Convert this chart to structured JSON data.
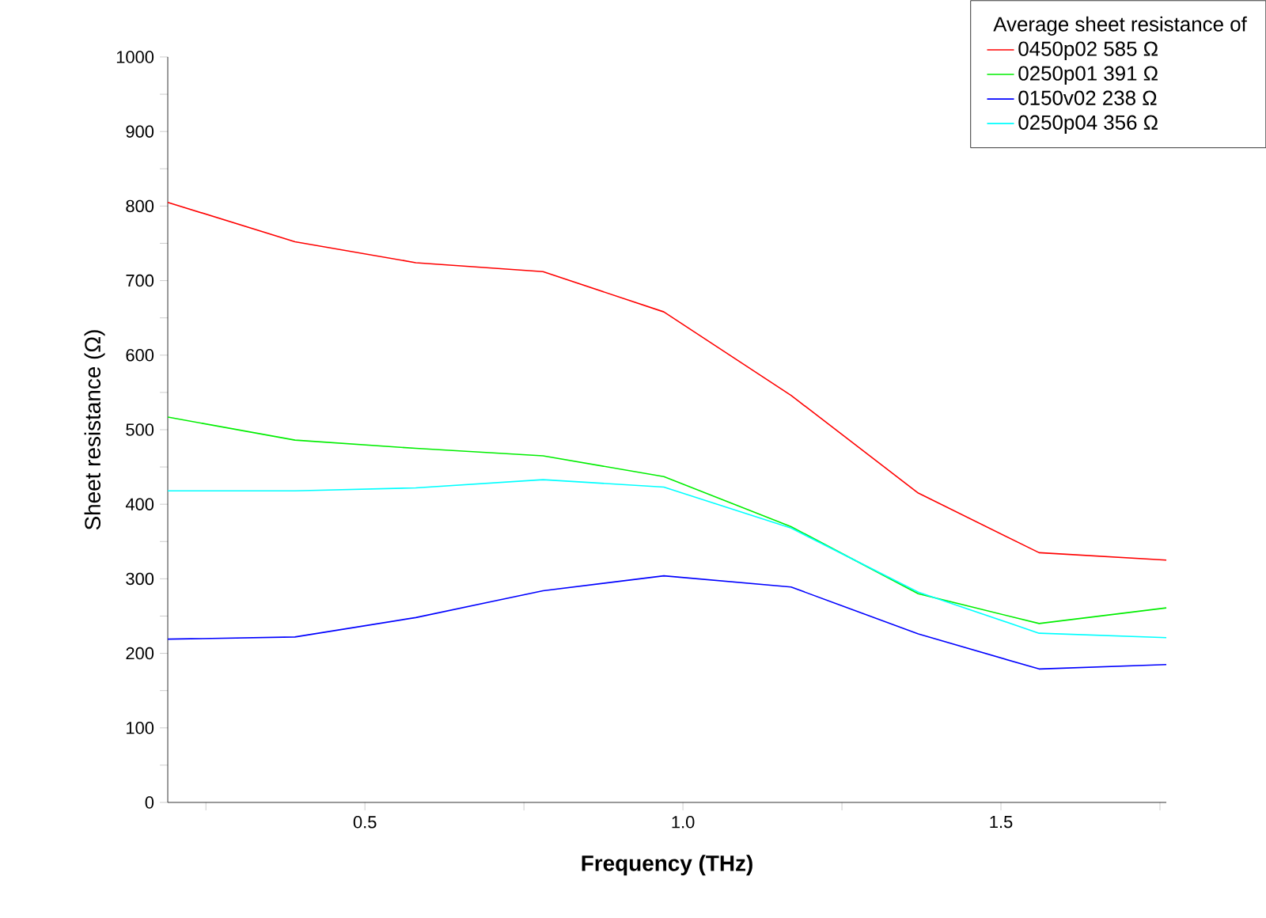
{
  "chart_data": {
    "type": "line",
    "xlabel": "Frequency (THz)",
    "ylabel": "Sheet resistance (Ω)",
    "legend_title": "Average sheet resistance of",
    "legend": "top right",
    "grid": false,
    "marker": "none",
    "line_style": "solid",
    "x": [
      0.19,
      0.39,
      0.58,
      0.78,
      0.97,
      1.17,
      1.37,
      1.56,
      1.76
    ],
    "series": [
      {
        "name": "0450p02  585 Ω",
        "color": "#ff0000",
        "values": [
          805,
          752,
          724,
          712,
          658,
          546,
          415,
          335,
          325
        ]
      },
      {
        "name": "0250p01  391 Ω",
        "color": "#00ee00",
        "values": [
          517,
          486,
          475,
          465,
          437,
          370,
          280,
          240,
          261
        ]
      },
      {
        "name": "0150v02  238 Ω",
        "color": "#0000ff",
        "values": [
          219,
          222,
          248,
          284,
          304,
          289,
          226,
          179,
          185
        ]
      },
      {
        "name": "0250p04  356 Ω",
        "color": "#00ffff",
        "values": [
          418,
          418,
          422,
          433,
          423,
          368,
          282,
          227,
          221
        ]
      }
    ],
    "xlim": [
      0.19,
      1.76
    ],
    "ylim": [
      0,
      1000
    ],
    "xticks": [
      {
        "value": 0.25,
        "label": null
      },
      {
        "value": 0.5,
        "label": "0.5"
      },
      {
        "value": 0.75,
        "label": null
      },
      {
        "value": 1.0,
        "label": "1.0"
      },
      {
        "value": 1.25,
        "label": null
      },
      {
        "value": 1.5,
        "label": "1.5"
      },
      {
        "value": 1.75,
        "label": null
      }
    ],
    "yticks": [
      0,
      {
        "value": 50,
        "label": null
      },
      100,
      {
        "value": 150,
        "label": null
      },
      200,
      {
        "value": 250,
        "label": null
      },
      300,
      {
        "value": 350,
        "label": null
      },
      400,
      {
        "value": 450,
        "label": null
      },
      500,
      {
        "value": 550,
        "label": null
      },
      600,
      {
        "value": 650,
        "label": null
      },
      700,
      {
        "value": 750,
        "label": null
      },
      800,
      {
        "value": 850,
        "label": null
      },
      900,
      {
        "value": 950,
        "label": null
      },
      1000
    ]
  }
}
